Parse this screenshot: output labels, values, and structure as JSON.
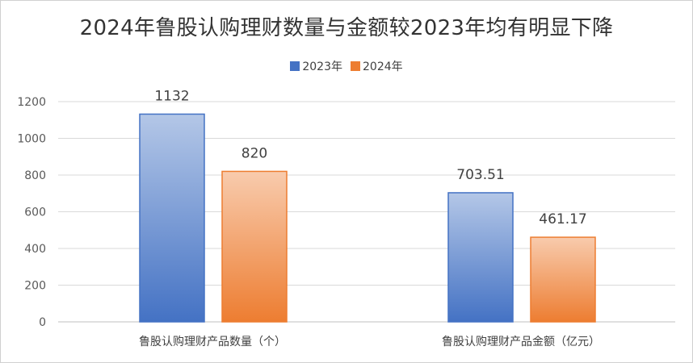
{
  "chart_data": {
    "type": "bar",
    "title": "2024年鲁股认购理财数量与金额较2023年均有明显下降",
    "categories": [
      "鲁股认购理财产品数量（个）",
      "鲁股认购理财产品金额（亿元）"
    ],
    "series": [
      {
        "name": "2023年",
        "values": [
          1132,
          703.51
        ],
        "labels": [
          "1132",
          "703.51"
        ],
        "color": "#4472C4"
      },
      {
        "name": "2024年",
        "values": [
          820,
          461.17
        ],
        "labels": [
          "820",
          "461.17"
        ],
        "color": "#ED7D31"
      }
    ],
    "ylim": [
      0,
      1200
    ],
    "yticks": [
      0,
      200,
      400,
      600,
      800,
      1000,
      1200
    ],
    "grid": true,
    "legend": "top"
  }
}
